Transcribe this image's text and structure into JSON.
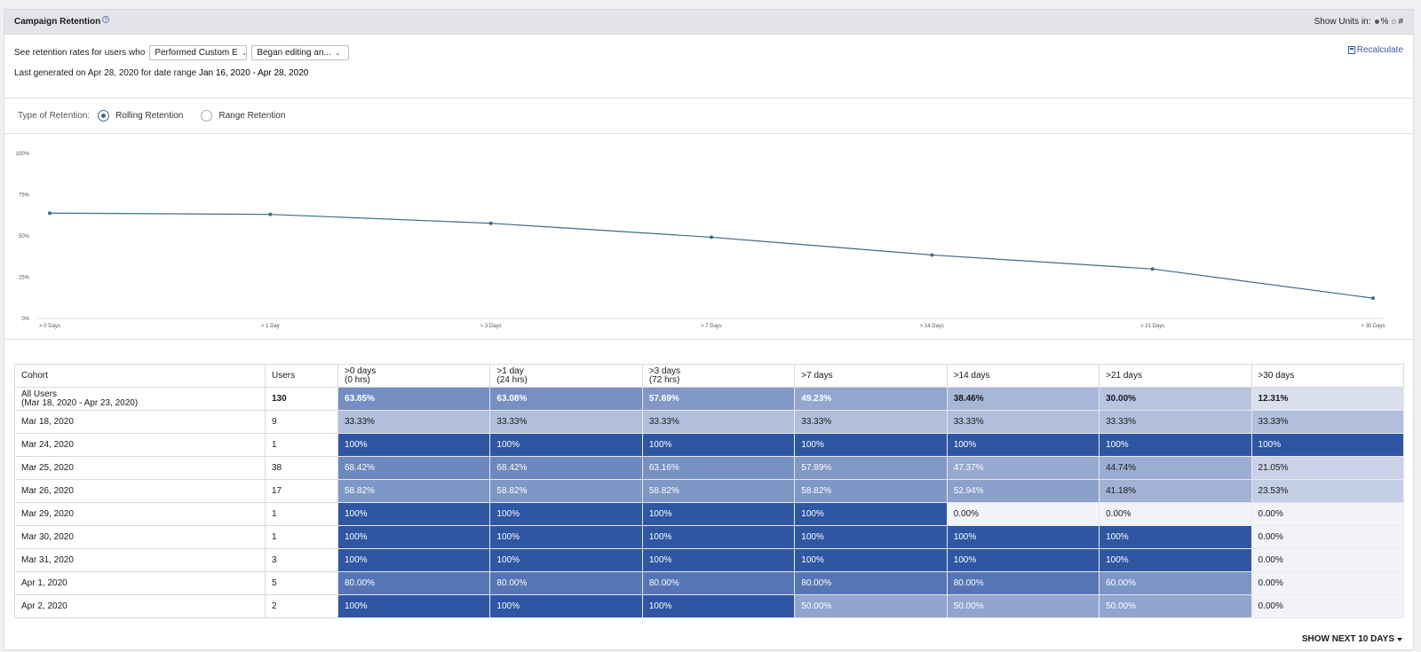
{
  "header": {
    "title": "Campaign Retention",
    "units_label": "Show Units in:",
    "unit_options": [
      "%",
      "#"
    ],
    "unit_selected": "%"
  },
  "controls": {
    "prefix": "See retention rates for users who",
    "select1": "Performed Custom E",
    "select2": "Began editing an...",
    "generated_prefix": "Last generated on Apr 28, 2020 for date range",
    "date_range": "Jan 16, 2020 - Apr 28, 2020",
    "recalculate": "Recalculate"
  },
  "retention_type": {
    "label": "Type of Retention:",
    "options": [
      "Rolling Retention",
      "Range Retention"
    ],
    "selected": "Rolling Retention"
  },
  "chart_data": {
    "type": "line",
    "categories": [
      "> 0 Days",
      "> 1 Day",
      "> 3 Days",
      "> 7 Days",
      "> 14 Days",
      "> 21 Days",
      "> 30 Days"
    ],
    "values": [
      63.85,
      63.08,
      57.69,
      49.23,
      38.46,
      30.0,
      12.31
    ],
    "yticks": [
      "100%",
      "75%",
      "50%",
      "25%",
      "0%"
    ],
    "ylim": [
      0,
      100
    ],
    "color": "#3d6b86"
  },
  "table": {
    "headers": [
      [
        "Cohort"
      ],
      [
        "Users"
      ],
      [
        ">0 days",
        "(0 hrs)"
      ],
      [
        ">1 day",
        "(24 hrs)"
      ],
      [
        ">3 days",
        "(72 hrs)"
      ],
      [
        ">7 days"
      ],
      [
        ">14 days"
      ],
      [
        ">21 days"
      ],
      [
        ">30 days"
      ]
    ],
    "summary": {
      "label": "All Users",
      "range": "(Mar 18, 2020 - Apr 23, 2020)",
      "users": "130",
      "values": [
        "63.85%",
        "63.08%",
        "57.69%",
        "49.23%",
        "38.46%",
        "30.00%",
        "12.31%"
      ],
      "levels": [
        63.85,
        63.08,
        57.69,
        49.23,
        38.46,
        30.0,
        12.31
      ]
    },
    "rows": [
      {
        "cohort": "Mar 18, 2020",
        "users": "9",
        "values": [
          "33.33%",
          "33.33%",
          "33.33%",
          "33.33%",
          "33.33%",
          "33.33%",
          "33.33%"
        ],
        "levels": [
          33.33,
          33.33,
          33.33,
          33.33,
          33.33,
          33.33,
          33.33
        ]
      },
      {
        "cohort": "Mar 24, 2020",
        "users": "1",
        "values": [
          "100%",
          "100%",
          "100%",
          "100%",
          "100%",
          "100%",
          "100%"
        ],
        "levels": [
          100,
          100,
          100,
          100,
          100,
          100,
          100
        ]
      },
      {
        "cohort": "Mar 25, 2020",
        "users": "38",
        "values": [
          "68.42%",
          "68.42%",
          "63.16%",
          "57.89%",
          "47.37%",
          "44.74%",
          "21.05%"
        ],
        "levels": [
          68.42,
          68.42,
          63.16,
          57.89,
          47.37,
          44.74,
          21.05
        ]
      },
      {
        "cohort": "Mar 26, 2020",
        "users": "17",
        "values": [
          "58.82%",
          "58.82%",
          "58.82%",
          "58.82%",
          "52.94%",
          "41.18%",
          "23.53%"
        ],
        "levels": [
          58.82,
          58.82,
          58.82,
          58.82,
          52.94,
          41.18,
          23.53
        ]
      },
      {
        "cohort": "Mar 29, 2020",
        "users": "1",
        "values": [
          "100%",
          "100%",
          "100%",
          "100%",
          "0.00%",
          "0.00%",
          "0.00%"
        ],
        "levels": [
          100,
          100,
          100,
          100,
          0,
          0,
          0
        ]
      },
      {
        "cohort": "Mar 30, 2020",
        "users": "1",
        "values": [
          "100%",
          "100%",
          "100%",
          "100%",
          "100%",
          "100%",
          "0.00%"
        ],
        "levels": [
          100,
          100,
          100,
          100,
          100,
          100,
          0
        ]
      },
      {
        "cohort": "Mar 31, 2020",
        "users": "3",
        "values": [
          "100%",
          "100%",
          "100%",
          "100%",
          "100%",
          "100%",
          "0.00%"
        ],
        "levels": [
          100,
          100,
          100,
          100,
          100,
          100,
          0
        ]
      },
      {
        "cohort": "Apr 1, 2020",
        "users": "5",
        "values": [
          "80.00%",
          "80.00%",
          "80.00%",
          "80.00%",
          "80.00%",
          "60.00%",
          "0.00%"
        ],
        "levels": [
          80,
          80,
          80,
          80,
          80,
          60,
          0
        ]
      },
      {
        "cohort": "Apr 2, 2020",
        "users": "2",
        "values": [
          "100%",
          "100%",
          "100%",
          "50.00%",
          "50.00%",
          "50.00%",
          "0.00%"
        ],
        "levels": [
          100,
          100,
          100,
          50,
          50,
          50,
          0
        ]
      }
    ]
  },
  "footer": {
    "show_next": "SHOW NEXT 10 DAYS"
  }
}
